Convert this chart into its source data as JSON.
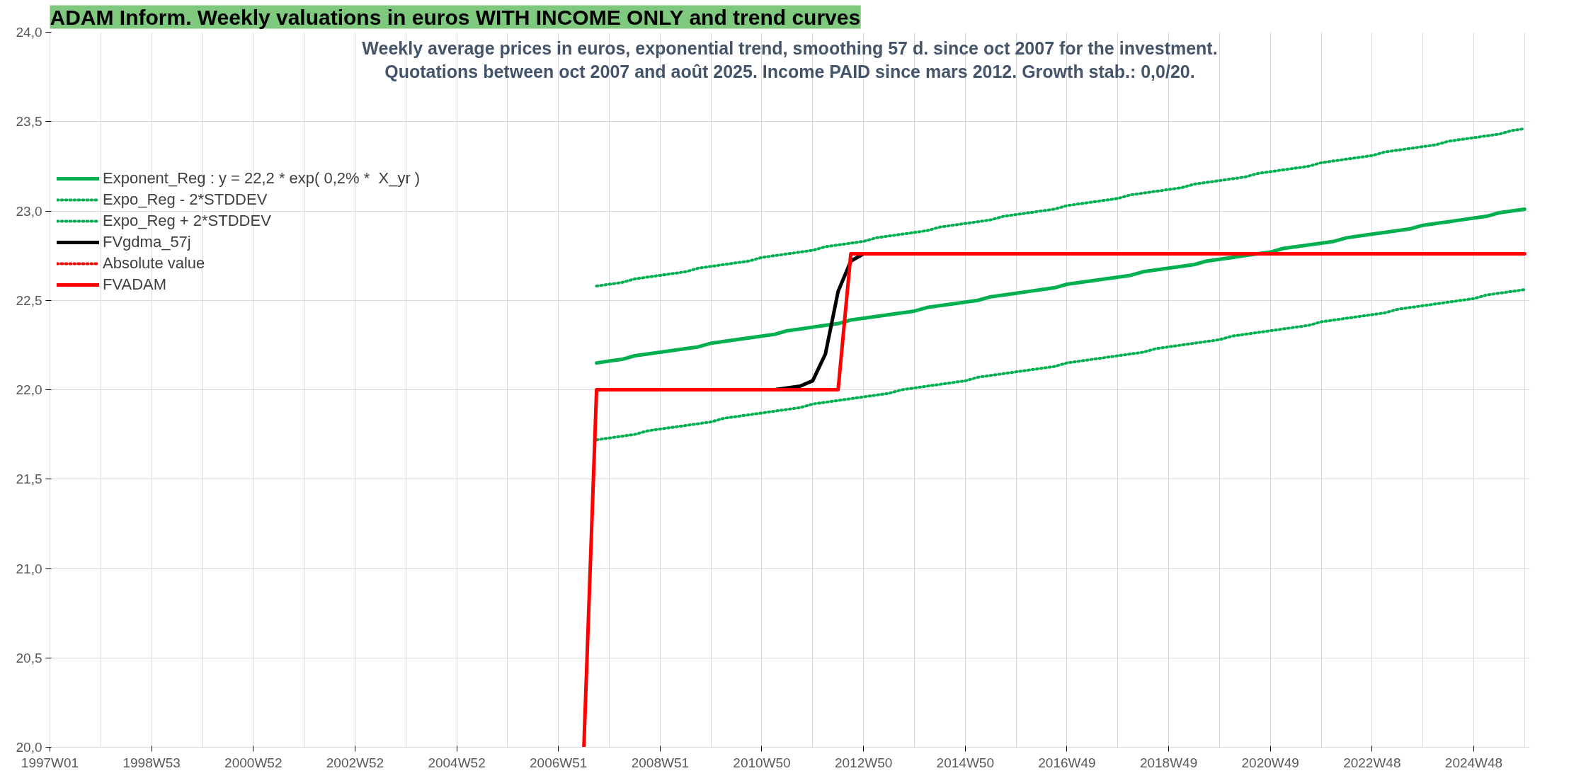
{
  "chart_data": {
    "type": "line",
    "title": "ADAM Inform. Weekly valuations in euros WITH INCOME ONLY and trend curves",
    "subtitle": "Weekly average prices in euros, exponential trend, smoothing 57 d. since oct 2007 for the investment.\nQuotations between oct 2007 and août 2025. Income PAID since mars 2012. Growth stab.: 0,0/20.",
    "categories": [
      "1997W01",
      null,
      null,
      null,
      null,
      null,
      null,
      null,
      "1998W53",
      null,
      null,
      null,
      null,
      null,
      null,
      null,
      "2000W52",
      null,
      null,
      null,
      null,
      null,
      null,
      null,
      "2002W52",
      null,
      null,
      null,
      null,
      null,
      null,
      null,
      "2004W52",
      null,
      null,
      null,
      null,
      null,
      null,
      null,
      "2006W51",
      null,
      null,
      null,
      null,
      null,
      null,
      null,
      "2008W51",
      null,
      null,
      null,
      null,
      null,
      null,
      null,
      "2010W50",
      null,
      null,
      null,
      null,
      null,
      null,
      null,
      "2012W50",
      null,
      null,
      null,
      null,
      null,
      null,
      null,
      "2014W50",
      null,
      null,
      null,
      null,
      null,
      null,
      null,
      "2016W49",
      null,
      null,
      null,
      null,
      null,
      null,
      null,
      "2018W49",
      null,
      null,
      null,
      null,
      null,
      null,
      null,
      "2020W49",
      null,
      null,
      null,
      null,
      null,
      null,
      null,
      "2022W48",
      null,
      null,
      null,
      null,
      null,
      null,
      null,
      "2024W48",
      null,
      null,
      null,
      null
    ],
    "ylim": [
      20.0,
      24.0
    ],
    "yticks": [
      {
        "value": 20,
        "label": "20,0"
      },
      {
        "value": 20.5,
        "label": "20,5"
      },
      {
        "value": 21,
        "label": "21,0"
      },
      {
        "value": 21.5,
        "label": "21,5"
      },
      {
        "value": 22,
        "label": "22,0"
      },
      {
        "value": 22.5,
        "label": "22,5"
      },
      {
        "value": 23,
        "label": "23,0"
      },
      {
        "value": 23.5,
        "label": "23,5"
      },
      {
        "value": 24,
        "label": "24,0"
      }
    ],
    "grid": true,
    "legend": "top left",
    "marker": "none",
    "series": [
      {
        "name": "Exponent_Reg : y = 22,2 * exp( 0,2% *  X_yr )",
        "color": "#00b050",
        "line_style": "solid",
        "values": [
          null,
          null,
          null,
          null,
          null,
          null,
          null,
          null,
          null,
          null,
          null,
          null,
          null,
          null,
          null,
          null,
          null,
          null,
          null,
          null,
          null,
          null,
          null,
          null,
          null,
          null,
          null,
          null,
          null,
          null,
          null,
          null,
          null,
          null,
          null,
          null,
          null,
          null,
          null,
          null,
          null,
          null,
          null,
          22.15,
          22.16,
          22.17,
          22.19,
          22.2,
          22.21,
          22.22,
          22.23,
          22.24,
          22.26,
          22.27,
          22.28,
          22.29,
          22.3,
          22.31,
          22.33,
          22.34,
          22.35,
          22.36,
          22.37,
          22.39,
          22.4,
          22.41,
          22.42,
          22.43,
          22.44,
          22.46,
          22.47,
          22.48,
          22.49,
          22.5,
          22.52,
          22.53,
          22.54,
          22.55,
          22.56,
          22.57,
          22.59,
          22.6,
          22.61,
          22.62,
          22.63,
          22.64,
          22.66,
          22.67,
          22.68,
          22.69,
          22.7,
          22.72,
          22.73,
          22.74,
          22.75,
          22.76,
          22.77,
          22.79,
          22.8,
          22.81,
          22.82,
          22.83,
          22.85,
          22.86,
          22.87,
          22.88,
          22.89,
          22.9,
          22.92,
          22.93,
          22.94,
          22.95,
          22.96,
          22.97,
          22.99,
          23.0,
          23.01
        ]
      },
      {
        "name": "Expo_Reg - 2*STDDEV",
        "color": "#00b050",
        "line_style": "dotted",
        "values": [
          null,
          null,
          null,
          null,
          null,
          null,
          null,
          null,
          null,
          null,
          null,
          null,
          null,
          null,
          null,
          null,
          null,
          null,
          null,
          null,
          null,
          null,
          null,
          null,
          null,
          null,
          null,
          null,
          null,
          null,
          null,
          null,
          null,
          null,
          null,
          null,
          null,
          null,
          null,
          null,
          null,
          null,
          null,
          21.72,
          21.73,
          21.74,
          21.75,
          21.77,
          21.78,
          21.79,
          21.8,
          21.81,
          21.82,
          21.84,
          21.85,
          21.86,
          21.87,
          21.88,
          21.89,
          21.9,
          21.92,
          21.93,
          21.94,
          21.95,
          21.96,
          21.97,
          21.98,
          22.0,
          22.01,
          22.02,
          22.03,
          22.04,
          22.05,
          22.07,
          22.08,
          22.09,
          22.1,
          22.11,
          22.12,
          22.13,
          22.15,
          22.16,
          22.17,
          22.18,
          22.19,
          22.2,
          22.21,
          22.23,
          22.24,
          22.25,
          22.26,
          22.27,
          22.28,
          22.3,
          22.31,
          22.32,
          22.33,
          22.34,
          22.35,
          22.36,
          22.38,
          22.39,
          22.4,
          22.41,
          22.42,
          22.43,
          22.45,
          22.46,
          22.47,
          22.48,
          22.49,
          22.5,
          22.51,
          22.53,
          22.54,
          22.55,
          22.56
        ]
      },
      {
        "name": "Expo_Reg + 2*STDDEV",
        "color": "#00b050",
        "line_style": "dotted",
        "values": [
          null,
          null,
          null,
          null,
          null,
          null,
          null,
          null,
          null,
          null,
          null,
          null,
          null,
          null,
          null,
          null,
          null,
          null,
          null,
          null,
          null,
          null,
          null,
          null,
          null,
          null,
          null,
          null,
          null,
          null,
          null,
          null,
          null,
          null,
          null,
          null,
          null,
          null,
          null,
          null,
          null,
          null,
          null,
          22.58,
          22.59,
          22.6,
          22.62,
          22.63,
          22.64,
          22.65,
          22.66,
          22.68,
          22.69,
          22.7,
          22.71,
          22.72,
          22.74,
          22.75,
          22.76,
          22.77,
          22.78,
          22.8,
          22.81,
          22.82,
          22.83,
          22.85,
          22.86,
          22.87,
          22.88,
          22.89,
          22.91,
          22.92,
          22.93,
          22.94,
          22.95,
          22.97,
          22.98,
          22.99,
          23.0,
          23.01,
          23.03,
          23.04,
          23.05,
          23.06,
          23.07,
          23.09,
          23.1,
          23.11,
          23.12,
          23.13,
          23.15,
          23.16,
          23.17,
          23.18,
          23.19,
          23.21,
          23.22,
          23.23,
          23.24,
          23.25,
          23.27,
          23.28,
          23.29,
          23.3,
          23.31,
          23.33,
          23.34,
          23.35,
          23.36,
          23.37,
          23.39,
          23.4,
          23.41,
          23.42,
          23.43,
          23.45,
          23.46
        ]
      },
      {
        "name": "FVgdma_57j",
        "color": "#000000",
        "line_style": "solid",
        "values": [
          null,
          null,
          null,
          null,
          null,
          null,
          null,
          null,
          null,
          null,
          null,
          null,
          null,
          null,
          null,
          null,
          null,
          null,
          null,
          null,
          null,
          null,
          null,
          null,
          null,
          null,
          null,
          null,
          null,
          null,
          null,
          null,
          null,
          null,
          null,
          null,
          null,
          null,
          null,
          null,
          null,
          null,
          null,
          null,
          null,
          null,
          null,
          null,
          null,
          null,
          null,
          null,
          null,
          null,
          null,
          null,
          null,
          22.0,
          22.01,
          22.02,
          22.05,
          22.2,
          22.55,
          22.72,
          22.76,
          null,
          null,
          null,
          null,
          null,
          null,
          null,
          null,
          null,
          null,
          null,
          null,
          null,
          null,
          null,
          null,
          null,
          null,
          null,
          null,
          null,
          null,
          null,
          null,
          null,
          null,
          null,
          null,
          null,
          null,
          null,
          null,
          null,
          null,
          null,
          null,
          null,
          null,
          null,
          null,
          null,
          null,
          null,
          null,
          null,
          null,
          null,
          null,
          null,
          null,
          null,
          null
        ]
      },
      {
        "name": "Absolute value",
        "color": "#ff0000",
        "line_style": "dotted",
        "values": [
          null,
          null,
          null,
          null,
          null,
          null,
          null,
          null,
          null,
          null,
          null,
          null,
          null,
          null,
          null,
          null,
          null,
          null,
          null,
          null,
          null,
          null,
          null,
          null,
          null,
          null,
          null,
          null,
          null,
          null,
          null,
          null,
          null,
          null,
          null,
          null,
          null,
          null,
          null,
          null,
          null,
          null,
          null,
          null,
          null,
          null,
          null,
          null,
          null,
          null,
          null,
          null,
          null,
          null,
          null,
          null,
          null,
          null,
          null,
          null,
          null,
          null,
          null,
          null,
          null,
          null,
          null,
          null,
          null,
          null,
          null,
          null,
          null,
          null,
          null,
          null,
          null,
          null,
          null,
          null,
          null,
          null,
          null,
          null,
          null,
          null,
          null,
          null,
          null,
          null,
          null,
          null,
          null,
          null,
          null,
          null,
          null,
          null,
          null,
          null,
          null,
          null,
          null,
          null,
          null,
          null,
          null,
          null,
          null,
          null,
          null,
          null,
          null,
          null,
          null,
          null,
          null
        ]
      },
      {
        "name": "FVADAM",
        "color": "#ff0000",
        "line_style": "solid",
        "values": [
          null,
          null,
          null,
          null,
          null,
          null,
          null,
          null,
          null,
          null,
          null,
          null,
          null,
          null,
          null,
          null,
          null,
          null,
          null,
          null,
          null,
          null,
          null,
          null,
          null,
          null,
          null,
          null,
          null,
          null,
          null,
          null,
          null,
          null,
          null,
          null,
          null,
          null,
          null,
          null,
          null,
          null,
          20.0,
          22.0,
          22.0,
          22.0,
          22.0,
          22.0,
          22.0,
          22.0,
          22.0,
          22.0,
          22.0,
          22.0,
          22.0,
          22.0,
          22.0,
          22.0,
          22.0,
          22.0,
          22.0,
          22.0,
          22.0,
          22.76,
          22.76,
          22.76,
          22.76,
          22.76,
          22.76,
          22.76,
          22.76,
          22.76,
          22.76,
          22.76,
          22.76,
          22.76,
          22.76,
          22.76,
          22.76,
          22.76,
          22.76,
          22.76,
          22.76,
          22.76,
          22.76,
          22.76,
          22.76,
          22.76,
          22.76,
          22.76,
          22.76,
          22.76,
          22.76,
          22.76,
          22.76,
          22.76,
          22.76,
          22.76,
          22.76,
          22.76,
          22.76,
          22.76,
          22.76,
          22.76,
          22.76,
          22.76,
          22.76,
          22.76,
          22.76,
          22.76,
          22.76,
          22.76,
          22.76,
          22.76,
          22.76,
          22.76,
          22.76
        ]
      }
    ]
  }
}
